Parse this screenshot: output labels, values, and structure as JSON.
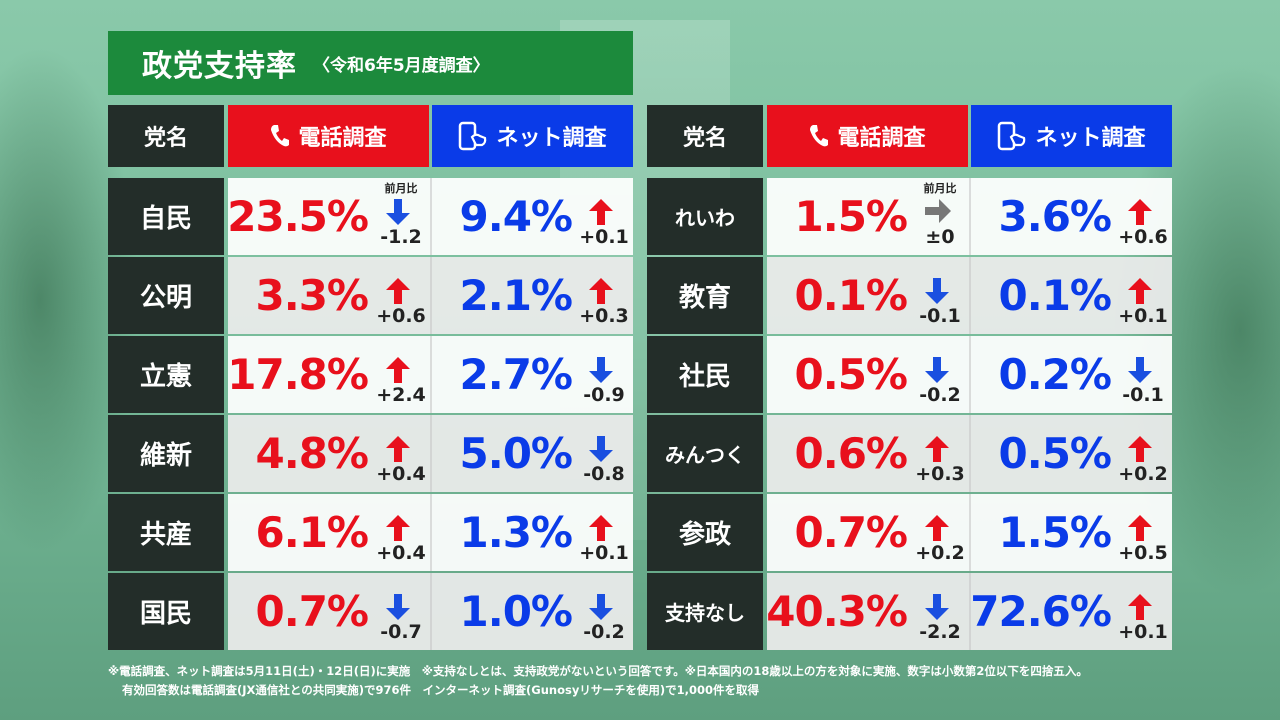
{
  "title": "政党支持率",
  "subtitle": "〈令和6年5月度調査〉",
  "headers": {
    "party": "党名",
    "phone": "電話調査",
    "net": "ネット調査"
  },
  "colors": {
    "title_bg": "#1c8a3c",
    "phone": "#e8101c",
    "net": "#0a3be8",
    "party_bg": "#232d29"
  },
  "icons": {
    "phone": "phone-icon",
    "net": "smartphone-touch-icon"
  },
  "mom_label": "前月比",
  "left_rows": [
    {
      "party": "自民",
      "tel": "23.5%",
      "tel_dir": "down",
      "tel_delta": "-1.2",
      "net": "9.4%",
      "net_dir": "up",
      "net_delta": "+0.1"
    },
    {
      "party": "公明",
      "tel": "3.3%",
      "tel_dir": "up",
      "tel_delta": "+0.6",
      "net": "2.1%",
      "net_dir": "up",
      "net_delta": "+0.3"
    },
    {
      "party": "立憲",
      "tel": "17.8%",
      "tel_dir": "up",
      "tel_delta": "+2.4",
      "net": "2.7%",
      "net_dir": "down",
      "net_delta": "-0.9"
    },
    {
      "party": "維新",
      "tel": "4.8%",
      "tel_dir": "up",
      "tel_delta": "+0.4",
      "net": "5.0%",
      "net_dir": "down",
      "net_delta": "-0.8"
    },
    {
      "party": "共産",
      "tel": "6.1%",
      "tel_dir": "up",
      "tel_delta": "+0.4",
      "net": "1.3%",
      "net_dir": "up",
      "net_delta": "+0.1"
    },
    {
      "party": "国民",
      "tel": "0.7%",
      "tel_dir": "down",
      "tel_delta": "-0.7",
      "net": "1.0%",
      "net_dir": "down",
      "net_delta": "-0.2"
    }
  ],
  "right_rows": [
    {
      "party": "れいわ",
      "tel": "1.5%",
      "tel_dir": "flat",
      "tel_delta": "±0",
      "net": "3.6%",
      "net_dir": "up",
      "net_delta": "+0.6"
    },
    {
      "party": "教育",
      "tel": "0.1%",
      "tel_dir": "down",
      "tel_delta": "-0.1",
      "net": "0.1%",
      "net_dir": "up",
      "net_delta": "+0.1"
    },
    {
      "party": "社民",
      "tel": "0.5%",
      "tel_dir": "down",
      "tel_delta": "-0.2",
      "net": "0.2%",
      "net_dir": "down",
      "net_delta": "-0.1"
    },
    {
      "party": "みんつく",
      "tel": "0.6%",
      "tel_dir": "up",
      "tel_delta": "+0.3",
      "net": "0.5%",
      "net_dir": "up",
      "net_delta": "+0.2"
    },
    {
      "party": "参政",
      "tel": "0.7%",
      "tel_dir": "up",
      "tel_delta": "+0.2",
      "net": "1.5%",
      "net_dir": "up",
      "net_delta": "+0.5"
    },
    {
      "party": "支持なし",
      "tel": "40.3%",
      "tel_dir": "down",
      "tel_delta": "-2.2",
      "net": "72.6%",
      "net_dir": "up",
      "net_delta": "+0.1"
    }
  ],
  "footnote_line1": "※電話調査、ネット調査は5月11日(土)・12日(日)に実施　※支持なしとは、支持政党がないという回答です。※日本国内の18歳以上の方を対象に実施、数字は小数第2位以下を四捨五入。",
  "footnote_line2": "有効回答数は電話調査(JX通信社との共同実施)で976件　インターネット調査(Gunosyリサーチを使用)で1,000件を取得"
}
